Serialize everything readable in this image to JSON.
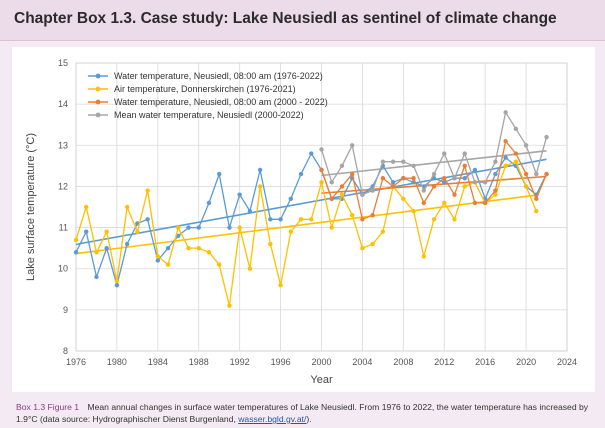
{
  "header": {
    "title": "Chapter Box 1.3.   Case study: Lake Neusiedl as sentinel of climate change"
  },
  "caption": {
    "label": "Box 1.3 Figure 1",
    "text_before": "Mean annual changes in surface water temperatures of Lake Neusiedl. From 1976 to 2022, the water temperature has increased by 1.9°C (data source: Hydrographischer Dienst Burgenland, ",
    "link": "wasser.bgld.gv.at/",
    "text_after": ")."
  },
  "chart_data": {
    "type": "line",
    "xlabel": "Year",
    "ylabel": "Lake surface temperature (°C)",
    "xlim": [
      1976,
      2024
    ],
    "ylim": [
      8,
      15
    ],
    "xticks": [
      1976,
      1980,
      1984,
      1988,
      1992,
      1996,
      2000,
      2004,
      2008,
      2012,
      2016,
      2020,
      2024
    ],
    "yticks": [
      8,
      9,
      10,
      11,
      12,
      13,
      14,
      15
    ],
    "grid": true,
    "legend_position": "top-left",
    "series": [
      {
        "name": "Water temperature, Neusiedl, 08:00 am (1976-2022)",
        "color": "#5b9bd5",
        "marker": "circle",
        "trendline": true,
        "x": [
          1976,
          1977,
          1978,
          1979,
          1980,
          1981,
          1982,
          1983,
          1984,
          1985,
          1986,
          1987,
          1988,
          1989,
          1990,
          1991,
          1992,
          1993,
          1994,
          1995,
          1996,
          1997,
          1998,
          1999,
          2000,
          2001,
          2002,
          2003,
          2004,
          2005,
          2006,
          2007,
          2008,
          2009,
          2010,
          2011,
          2012,
          2013,
          2014,
          2015,
          2016,
          2017,
          2018,
          2019,
          2020,
          2021,
          2022
        ],
        "values": [
          10.4,
          10.9,
          9.8,
          10.5,
          9.6,
          10.6,
          11.1,
          11.2,
          10.2,
          10.5,
          10.8,
          11.0,
          11.0,
          11.6,
          12.3,
          11.0,
          11.8,
          11.4,
          12.4,
          11.2,
          11.2,
          11.7,
          12.3,
          12.8,
          12.4,
          11.7,
          11.7,
          12.2,
          11.8,
          12.0,
          12.5,
          12.1,
          12.2,
          12.1,
          12.0,
          12.2,
          12.1,
          12.2,
          12.2,
          12.4,
          11.7,
          12.3,
          12.7,
          12.5,
          12.0,
          11.8,
          12.3
        ]
      },
      {
        "name": "Air temperature, Donnerskirchen (1976-2021)",
        "color": "#ffc000",
        "marker": "circle",
        "trendline": true,
        "x": [
          1976,
          1977,
          1978,
          1979,
          1980,
          1981,
          1982,
          1983,
          1984,
          1985,
          1986,
          1987,
          1988,
          1989,
          1990,
          1991,
          1992,
          1993,
          1994,
          1995,
          1996,
          1997,
          1998,
          1999,
          2000,
          2001,
          2002,
          2003,
          2004,
          2005,
          2006,
          2007,
          2008,
          2009,
          2010,
          2011,
          2012,
          2013,
          2014,
          2015,
          2016,
          2017,
          2018,
          2019,
          2020,
          2021
        ],
        "values": [
          10.7,
          11.5,
          10.4,
          10.9,
          9.7,
          11.5,
          10.9,
          11.9,
          10.3,
          10.1,
          11.0,
          10.5,
          10.5,
          10.4,
          10.1,
          9.1,
          11.0,
          10.0,
          12.0,
          10.6,
          9.6,
          10.9,
          11.2,
          11.2,
          12.1,
          11.0,
          11.8,
          11.3,
          10.5,
          10.6,
          10.9,
          12.0,
          11.7,
          11.4,
          10.3,
          11.2,
          11.6,
          11.2,
          12.0,
          12.1,
          11.6,
          11.8,
          12.5,
          12.6,
          12.0,
          11.4
        ]
      },
      {
        "name": "Water temperature, Neusiedl, 08:00 am (2000 - 2022)",
        "color": "#ed7d31",
        "marker": "circle",
        "trendline": true,
        "x": [
          2000,
          2001,
          2002,
          2003,
          2004,
          2005,
          2006,
          2007,
          2008,
          2009,
          2010,
          2011,
          2012,
          2013,
          2014,
          2015,
          2016,
          2017,
          2018,
          2019,
          2020,
          2021,
          2022
        ],
        "values": [
          12.4,
          11.7,
          12.0,
          12.3,
          11.2,
          11.3,
          12.2,
          12.0,
          12.2,
          12.2,
          11.6,
          12.0,
          12.2,
          11.8,
          12.5,
          11.6,
          11.6,
          11.9,
          13.1,
          12.8,
          12.3,
          11.7,
          12.3
        ]
      },
      {
        "name": "Mean water temperature, Neusiedl (2000-2022)",
        "color": "#a5a5a5",
        "marker": "circle",
        "trendline": true,
        "x": [
          2000,
          2001,
          2002,
          2003,
          2004,
          2005,
          2006,
          2007,
          2008,
          2009,
          2010,
          2011,
          2012,
          2013,
          2014,
          2015,
          2016,
          2017,
          2018,
          2019,
          2020,
          2021,
          2022
        ],
        "values": [
          12.9,
          12.1,
          12.5,
          13.0,
          11.8,
          11.9,
          12.6,
          12.6,
          12.6,
          12.5,
          11.9,
          12.3,
          12.8,
          12.2,
          12.8,
          12.1,
          12.1,
          12.6,
          13.8,
          13.4,
          13.0,
          12.3,
          13.2
        ]
      }
    ]
  }
}
